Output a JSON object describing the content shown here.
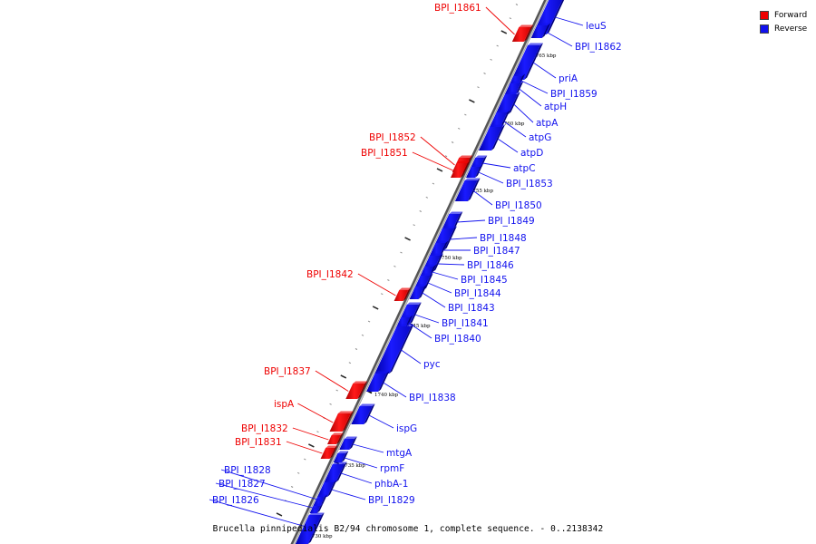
{
  "caption": "Brucella pinnipedialis B2/94 chromosome 1, complete sequence. - 0..2138342",
  "legend": [
    {
      "label": "Forward",
      "color": "#ee0000"
    },
    {
      "label": "Reverse",
      "color": "#1111ee"
    }
  ],
  "colors": {
    "forward": "#ee0000",
    "reverse": "#1111ee",
    "backbone": "#7d7d7d"
  },
  "ticks": [
    "1765 kbp",
    "1760 kbp",
    "1755 kbp",
    "1750 kbp",
    "1745 kbp",
    "1740 kbp",
    "1735 kbp",
    "1730 kbp"
  ],
  "genes": [
    {
      "label": "leuS",
      "strand": "reverse"
    },
    {
      "label": "BPI_I1862",
      "strand": "reverse"
    },
    {
      "label": "BPI_I1861",
      "strand": "forward"
    },
    {
      "label": "priA",
      "strand": "reverse"
    },
    {
      "label": "BPI_I1859",
      "strand": "reverse"
    },
    {
      "label": "atpH",
      "strand": "reverse"
    },
    {
      "label": "atpA",
      "strand": "reverse"
    },
    {
      "label": "atpG",
      "strand": "reverse"
    },
    {
      "label": "atpD",
      "strand": "reverse"
    },
    {
      "label": "atpC",
      "strand": "reverse"
    },
    {
      "label": "BPI_I1853",
      "strand": "reverse"
    },
    {
      "label": "BPI_I1852",
      "strand": "forward"
    },
    {
      "label": "BPI_I1851",
      "strand": "forward"
    },
    {
      "label": "BPI_I1850",
      "strand": "reverse"
    },
    {
      "label": "BPI_I1849",
      "strand": "reverse"
    },
    {
      "label": "BPI_I1848",
      "strand": "reverse"
    },
    {
      "label": "BPI_I1847",
      "strand": "reverse"
    },
    {
      "label": "BPI_I1846",
      "strand": "reverse"
    },
    {
      "label": "BPI_I1845",
      "strand": "reverse"
    },
    {
      "label": "BPI_I1844",
      "strand": "reverse"
    },
    {
      "label": "BPI_I1843",
      "strand": "reverse"
    },
    {
      "label": "BPI_I1842",
      "strand": "forward"
    },
    {
      "label": "BPI_I1841",
      "strand": "reverse"
    },
    {
      "label": "BPI_I1840",
      "strand": "reverse"
    },
    {
      "label": "pyc",
      "strand": "reverse"
    },
    {
      "label": "BPI_I1838",
      "strand": "reverse"
    },
    {
      "label": "BPI_I1837",
      "strand": "forward"
    },
    {
      "label": "ispA",
      "strand": "forward"
    },
    {
      "label": "ispG",
      "strand": "reverse"
    },
    {
      "label": "mtgA",
      "strand": "reverse"
    },
    {
      "label": "BPI_I1832",
      "strand": "forward"
    },
    {
      "label": "BPI_I1831",
      "strand": "forward"
    },
    {
      "label": "rpmF",
      "strand": "reverse"
    },
    {
      "label": "phbA-1",
      "strand": "reverse"
    },
    {
      "label": "BPI_I1829",
      "strand": "reverse"
    },
    {
      "label": "BPI_I1828",
      "strand": "reverse"
    },
    {
      "label": "BPI_I1827",
      "strand": "reverse"
    },
    {
      "label": "BPI_I1826",
      "strand": "reverse"
    }
  ]
}
